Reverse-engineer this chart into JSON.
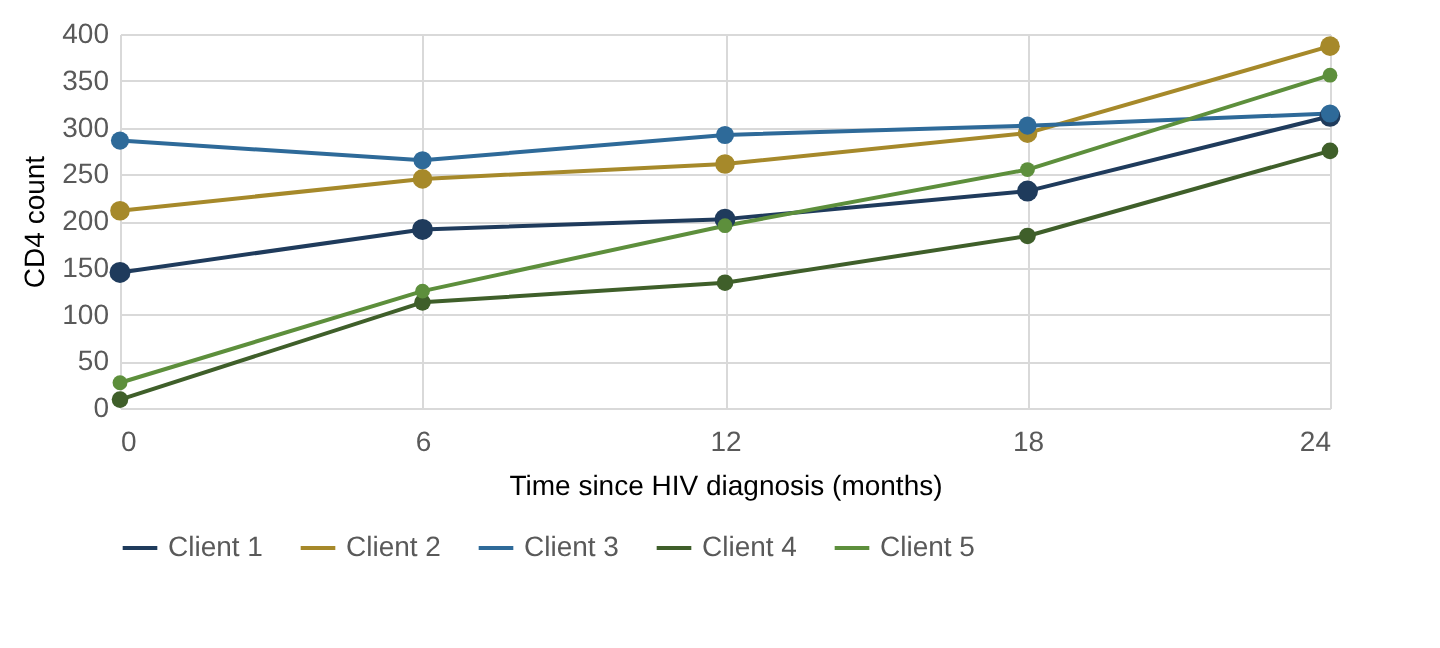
{
  "chart_data": {
    "type": "line",
    "xlabel": "Time since HIV diagnosis (months)",
    "ylabel": "CD4 count",
    "x": [
      0,
      6,
      12,
      18,
      24
    ],
    "series": [
      {
        "name": "Client 1",
        "color": "#1f3b5c",
        "values": [
          145,
          191,
          202,
          232,
          312
        ]
      },
      {
        "name": "Client 2",
        "color": "#a6892a",
        "values": [
          211,
          245,
          261,
          294,
          387
        ]
      },
      {
        "name": "Client 3",
        "color": "#2e6a99",
        "values": [
          286,
          265,
          292,
          302,
          315
        ]
      },
      {
        "name": "Client 4",
        "color": "#3f5f2a",
        "values": [
          9,
          113,
          134,
          184,
          275
        ]
      },
      {
        "name": "Client 5",
        "color": "#5d8f3c",
        "values": [
          27,
          125,
          195,
          255,
          356
        ]
      }
    ],
    "xlim": [
      0,
      24
    ],
    "xticks": [
      0,
      6,
      12,
      18,
      24
    ],
    "ylim": [
      0,
      400
    ],
    "yticks": [
      0,
      50,
      100,
      150,
      200,
      250,
      300,
      350,
      400
    ],
    "grid": true,
    "legend": "bottom",
    "marker": "circle",
    "line_style": "solid"
  }
}
